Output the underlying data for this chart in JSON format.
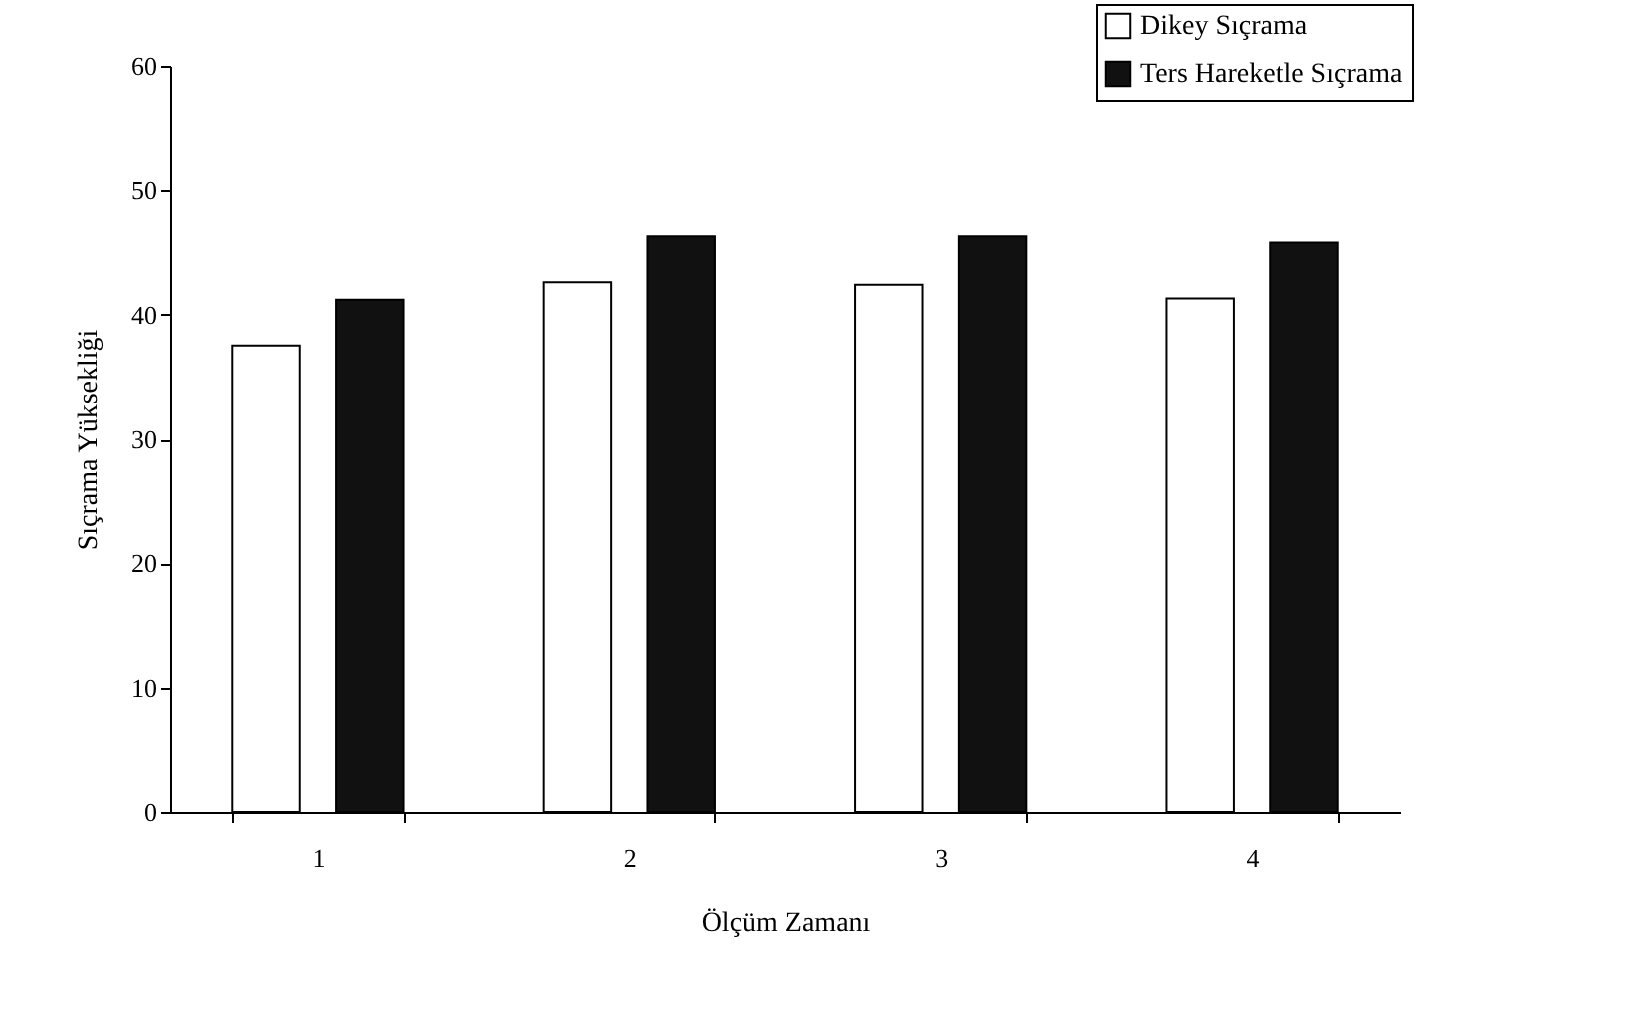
{
  "chart_data": {
    "type": "bar",
    "xlabel": "Ölçüm Zamanı",
    "ylabel": "Sıçrama Yüksekliği",
    "categories": [
      "1",
      "2",
      "3",
      "4"
    ],
    "series": [
      {
        "name": "Dikey Sıçrama",
        "color": "#ffffff",
        "values": [
          37.5,
          42.6,
          42.4,
          41.3
        ]
      },
      {
        "name": "Ters Hareketle Sıçrama",
        "color": "#111111",
        "values": [
          41.2,
          46.3,
          46.3,
          45.8
        ]
      }
    ],
    "ylim": [
      0,
      60
    ],
    "yticks": [
      0,
      10,
      20,
      30,
      40,
      50,
      60
    ],
    "grid": false,
    "legend": "top right"
  }
}
